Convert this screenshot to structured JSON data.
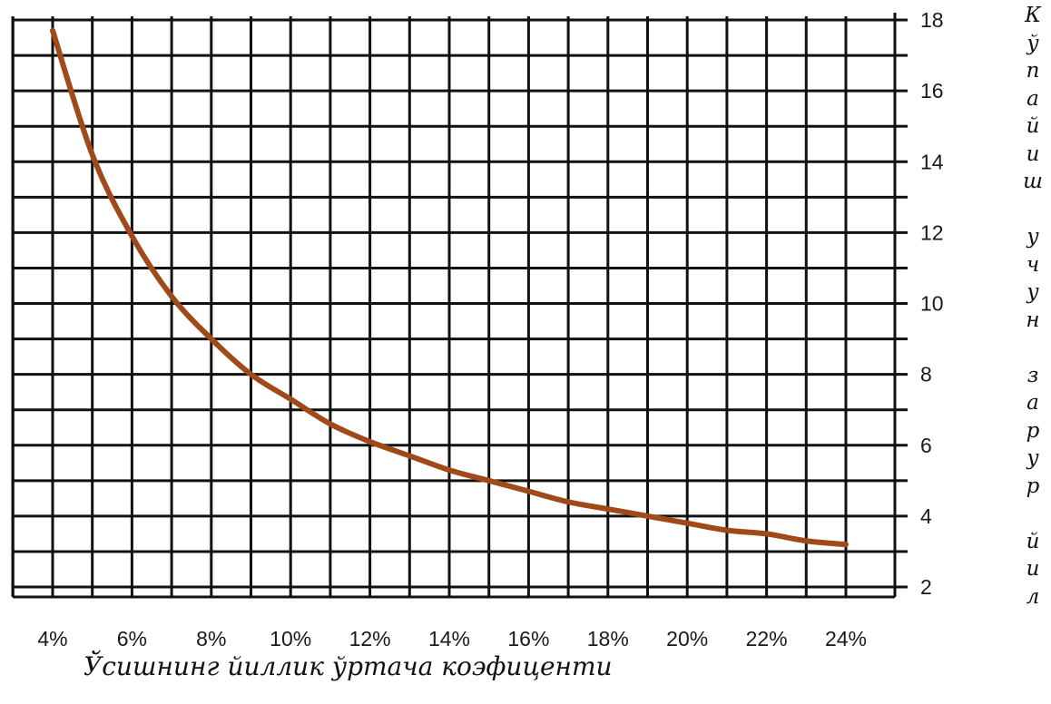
{
  "chart_data": {
    "type": "line",
    "title": "",
    "xlabel": "Ўсишнинг йиллик ўртача коэфиценти",
    "ylabel": "Кўпайиш учун зарур йил",
    "x_tick_labels": [
      "4%",
      "6%",
      "8%",
      "10%",
      "12%",
      "14%",
      "16%",
      "18%",
      "20%",
      "22%",
      "24%"
    ],
    "y_tick_labels": [
      "2",
      "4",
      "6",
      "8",
      "10",
      "12",
      "14",
      "16",
      "18"
    ],
    "xlim": [
      4,
      24
    ],
    "ylim": [
      2,
      18
    ],
    "y_axis_side": "right",
    "grid": true,
    "legend": "none",
    "colors": {
      "line": "#a04a1a",
      "grid": "#111111"
    },
    "series": [
      {
        "x": [
          4,
          5,
          6,
          7,
          8,
          9,
          10,
          11,
          12,
          13,
          14,
          15,
          16,
          17,
          18,
          19,
          20,
          21,
          22,
          23,
          24
        ],
        "values": [
          17.7,
          14.2,
          11.9,
          10.2,
          9.0,
          8.0,
          7.3,
          6.6,
          6.1,
          5.7,
          5.3,
          5.0,
          4.7,
          4.4,
          4.2,
          4.0,
          3.8,
          3.6,
          3.5,
          3.3,
          3.2
        ]
      }
    ]
  }
}
